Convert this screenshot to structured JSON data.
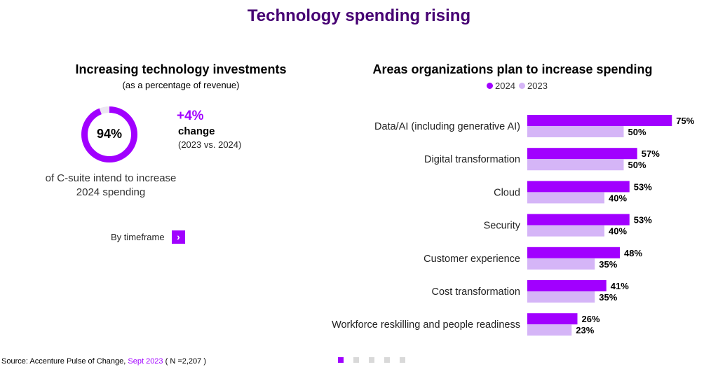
{
  "page": {
    "title": "Technology spending rising"
  },
  "left_panel": {
    "heading": "Increasing technology investments",
    "subheading": "(as a percentage of revenue)",
    "donut": {
      "label": "94%",
      "value_fraction": 0.94
    },
    "csuite_text": "of C-suite intend to increase 2024 spending",
    "change": {
      "percent": "+4%",
      "word": "change",
      "period": "(2023 vs. 2024)"
    },
    "timeframe": {
      "label": "By timeframe",
      "button_icon": "›"
    }
  },
  "chart_data": {
    "type": "bar",
    "orientation": "horizontal",
    "title": "Areas organizations plan to increase spending",
    "categories": [
      "Data/AI (including generative AI)",
      "Digital transformation",
      "Cloud",
      "Security",
      "Customer experience",
      "Cost transformation",
      "Workforce reskilling and people readiness"
    ],
    "series": [
      {
        "name": "2024",
        "values": [
          75,
          57,
          53,
          53,
          48,
          41,
          26
        ],
        "color": "#a100ff"
      },
      {
        "name": "2023",
        "values": [
          50,
          50,
          40,
          40,
          35,
          35,
          23
        ],
        "color": "#d5b5f7"
      }
    ],
    "value_suffix": "%",
    "xlim": [
      0,
      100
    ],
    "legend_placement": "top",
    "grid": false
  },
  "footer": {
    "source_prefix": "Source: Accenture Pulse of Change, ",
    "source_date": "Sept 2023",
    "source_suffix": " ( N =2,207 )",
    "pager": {
      "count": 5,
      "active_index": 0
    }
  },
  "colors": {
    "title": "#460073",
    "accent": "#a100ff",
    "accent_light": "#d5b5f7",
    "inactive_dot": "#d9d9d9",
    "track": "#ece6f2"
  }
}
